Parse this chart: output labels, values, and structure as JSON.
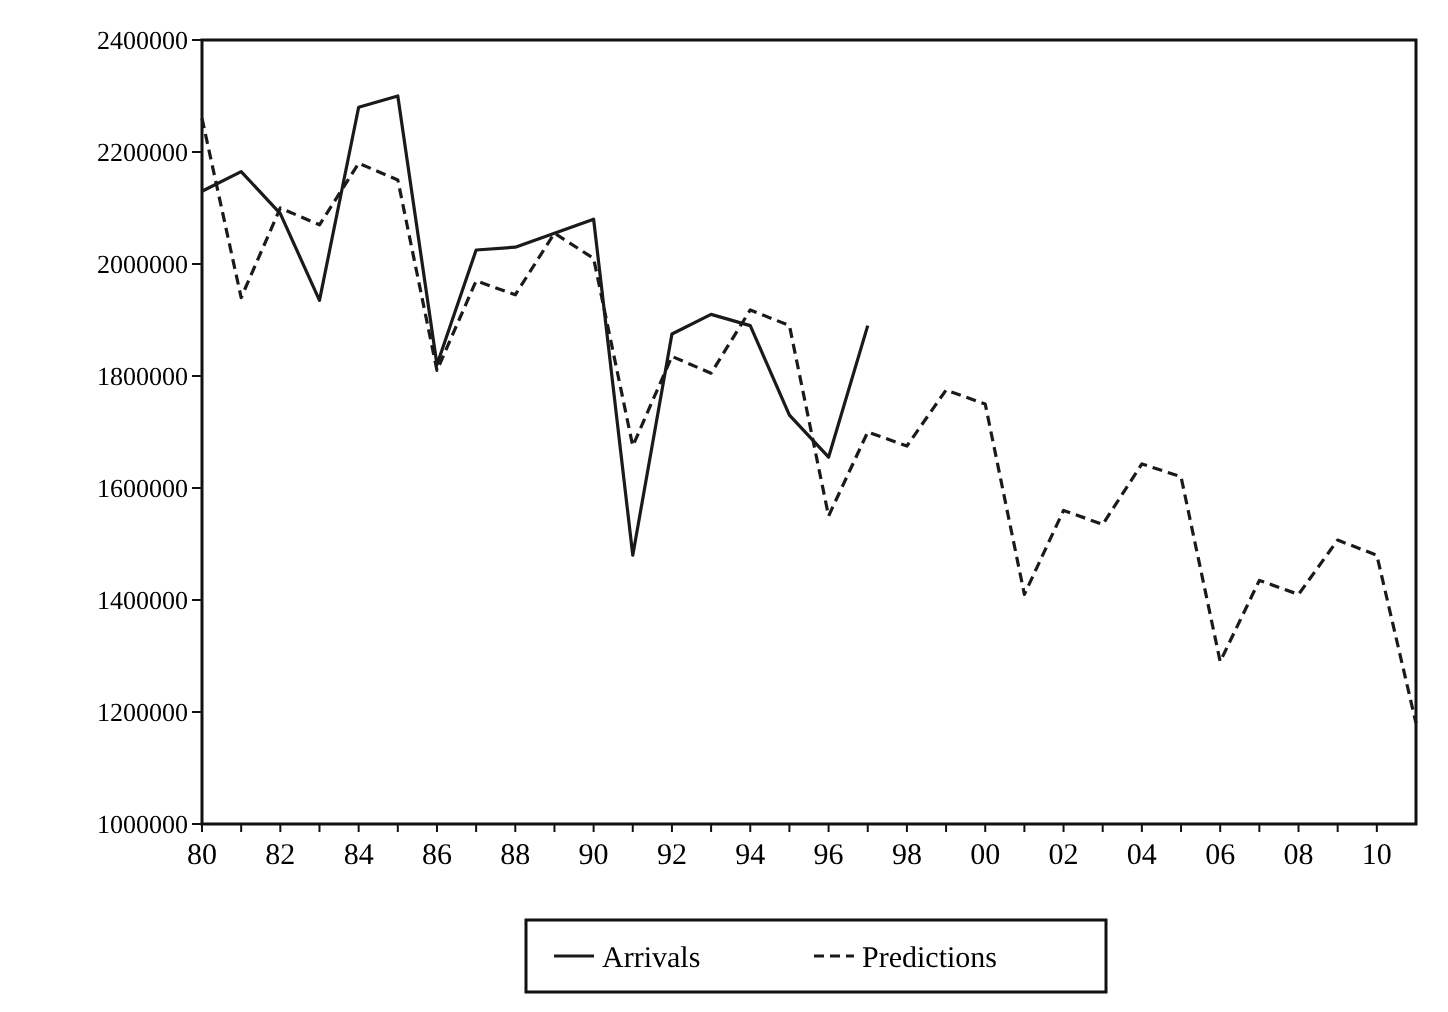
{
  "chart_data": {
    "type": "line",
    "x": [
      1980,
      1981,
      1982,
      1983,
      1984,
      1985,
      1986,
      1987,
      1988,
      1989,
      1990,
      1991,
      1992,
      1993,
      1994,
      1995,
      1996,
      1997
    ],
    "series": [
      {
        "name": "Arrivals",
        "color": "#1a1a1a",
        "line_style": "solid",
        "values": [
          2130000,
          2165000,
          2090000,
          1935000,
          2280000,
          2300000,
          1820000,
          2025000,
          2030000,
          2055000,
          2080000,
          1480000,
          1875000,
          1910000,
          1890000,
          1730000,
          1655000,
          1890000
        ]
      },
      {
        "name": "Predictions",
        "color": "#1a1a1a",
        "line_style": "dashed",
        "x": [
          1980,
          1981,
          1982,
          1983,
          1984,
          1985,
          1986,
          1987,
          1988,
          1989,
          1990,
          1991,
          1992,
          1993,
          1994,
          1995,
          1996,
          1997,
          1998,
          1999,
          2000,
          2001,
          2002,
          2003,
          2004,
          2005,
          2006,
          2007,
          2008,
          2009,
          2010,
          2011
        ],
        "values": [
          2260000,
          1940000,
          2100000,
          2070000,
          2180000,
          2150000,
          1810000,
          1970000,
          1945000,
          2055000,
          2010000,
          1675000,
          1835000,
          1805000,
          1918000,
          1890000,
          1550000,
          1700000,
          1675000,
          1775000,
          1750000,
          1410000,
          1560000,
          1535000,
          1643000,
          1620000,
          1290000,
          1435000,
          1410000,
          1507000,
          1480000,
          1180000
        ]
      }
    ],
    "xlim": [
      1980,
      2011
    ],
    "xticks": [
      {
        "value": 1980,
        "label": "80"
      },
      {
        "value": 1981,
        "label": null
      },
      {
        "value": 1982,
        "label": "82"
      },
      {
        "value": 1983,
        "label": null
      },
      {
        "value": 1984,
        "label": "84"
      },
      {
        "value": 1985,
        "label": null
      },
      {
        "value": 1986,
        "label": "86"
      },
      {
        "value": 1987,
        "label": null
      },
      {
        "value": 1988,
        "label": "88"
      },
      {
        "value": 1989,
        "label": null
      },
      {
        "value": 1990,
        "label": "90"
      },
      {
        "value": 1991,
        "label": null
      },
      {
        "value": 1992,
        "label": "92"
      },
      {
        "value": 1993,
        "label": null
      },
      {
        "value": 1994,
        "label": "94"
      },
      {
        "value": 1995,
        "label": null
      },
      {
        "value": 1996,
        "label": "96"
      },
      {
        "value": 1997,
        "label": null
      },
      {
        "value": 1998,
        "label": "98"
      },
      {
        "value": 1999,
        "label": null
      },
      {
        "value": 2000,
        "label": "00"
      },
      {
        "value": 2001,
        "label": null
      },
      {
        "value": 2002,
        "label": "02"
      },
      {
        "value": 2003,
        "label": null
      },
      {
        "value": 2004,
        "label": "04"
      },
      {
        "value": 2005,
        "label": null
      },
      {
        "value": 2006,
        "label": "06"
      },
      {
        "value": 2007,
        "label": null
      },
      {
        "value": 2008,
        "label": "08"
      },
      {
        "value": 2009,
        "label": null
      },
      {
        "value": 2010,
        "label": "10"
      }
    ],
    "ylim": [
      1000000,
      2400000
    ],
    "yticks": [
      1000000,
      1200000,
      1400000,
      1600000,
      1800000,
      2000000,
      2200000,
      2400000
    ],
    "legend": "bottom",
    "grid": false,
    "marker": "none"
  }
}
